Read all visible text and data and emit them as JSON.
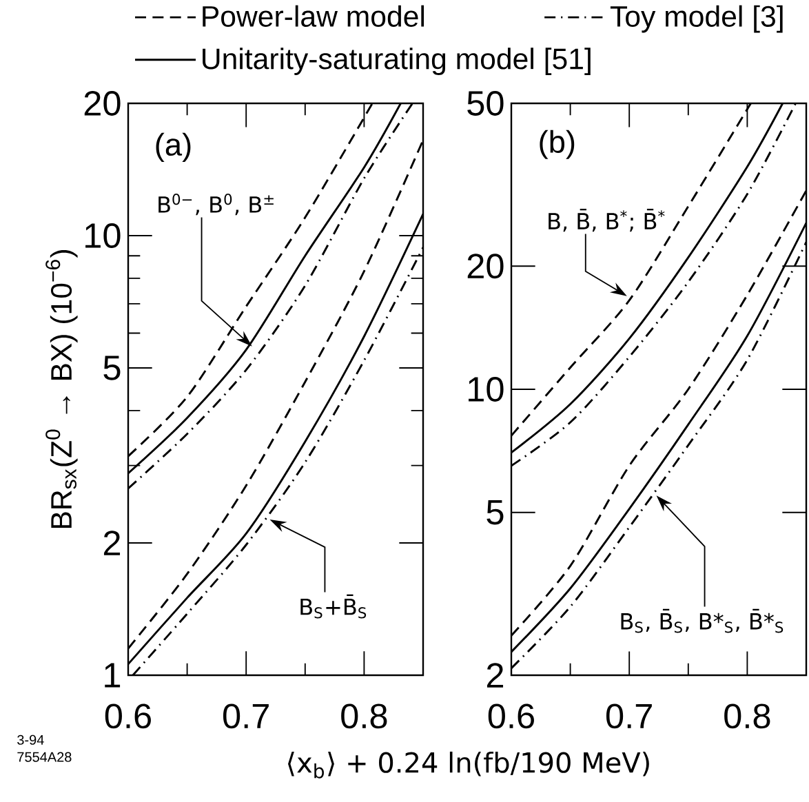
{
  "chart_data": [
    {
      "type": "line",
      "log": "y",
      "legend": "top",
      "ylabel": "BR$_{sx}$(Z$^{0}$ → BX)  (10$^{−6}$)",
      "xlabel": "⟨x$_{b}$⟩ + 0.24 ln(fb/190 MeV)",
      "xlim": [
        0.6,
        0.85
      ],
      "xticks": [
        0.6,
        0.7,
        0.8
      ],
      "ylim": [
        1,
        20
      ],
      "yticks": [
        1,
        2,
        5,
        10,
        20
      ],
      "series": [
        {
          "name": "Power-law model",
          "color": "#000000",
          "line_style": "dashed",
          "x": [
            0.6,
            0.65,
            0.7,
            0.75,
            0.807
          ],
          "values": [
            3.15,
            4.3,
            6.9,
            11,
            20
          ]
        },
        {
          "name": "Toy model [3]",
          "color": "#000000",
          "line_style": "dashdot",
          "x": [
            0.6,
            0.65,
            0.7,
            0.75,
            0.8,
            0.841
          ],
          "values": [
            2.66,
            3.54,
            4.95,
            7.7,
            13.5,
            20
          ]
        },
        {
          "name": "Unitarity-saturating model [51]",
          "color": "#000000",
          "line_style": "solid",
          "x": [
            0.6,
            0.65,
            0.7,
            0.75,
            0.8,
            0.831
          ],
          "values": [
            2.88,
            3.85,
            5.5,
            9.0,
            14.3,
            20
          ]
        },
        {
          "color": "#000000",
          "line_style": "dashed",
          "x": [
            0.6,
            0.65,
            0.7,
            0.75,
            0.8,
            0.85
          ],
          "values": [
            1.15,
            1.7,
            2.7,
            4.65,
            8.3,
            16.5
          ]
        },
        {
          "color": "#000000",
          "line_style": "dashdot",
          "x": [
            0.604,
            0.65,
            0.7,
            0.75,
            0.8,
            0.85
          ],
          "values": [
            1.0,
            1.38,
            1.98,
            3.05,
            5.2,
            9.4
          ]
        },
        {
          "color": "#000000",
          "line_style": "solid",
          "x": [
            0.6,
            0.65,
            0.7,
            0.75,
            0.8,
            0.85
          ],
          "values": [
            1.06,
            1.5,
            2.1,
            3.4,
            5.9,
            11.2
          ]
        }
      ],
      "annotations": [
        "(a)",
        {
          "text": "B$^{0−}$, B$^{0}$, B$^{±}$",
          "x": 0.705,
          "y": 5.6
        },
        {
          "text": "B$_{S}$+B̄$_{S}$",
          "x": 0.72,
          "y": 2.26
        },
        "3-94",
        "7554A28"
      ]
    },
    {
      "type": "line",
      "log": "y",
      "xlim": [
        0.6,
        0.85
      ],
      "xticks": [
        0.6,
        0.7,
        0.8
      ],
      "ylim": [
        2,
        50
      ],
      "yticks": [
        2,
        5,
        10,
        20,
        50
      ],
      "series": [
        {
          "color": "#000000",
          "line_style": "dashed",
          "x": [
            0.6,
            0.65,
            0.7,
            0.75,
            0.803
          ],
          "values": [
            7.7,
            11.3,
            16.5,
            28,
            50
          ]
        },
        {
          "color": "#000000",
          "line_style": "dashdot",
          "x": [
            0.6,
            0.65,
            0.7,
            0.75,
            0.8,
            0.841
          ],
          "values": [
            6.5,
            8.3,
            12,
            18.3,
            30,
            50
          ]
        },
        {
          "color": "#000000",
          "line_style": "solid",
          "x": [
            0.6,
            0.65,
            0.7,
            0.75,
            0.8,
            0.83
          ],
          "values": [
            7.0,
            9.2,
            13.3,
            21,
            35,
            50
          ]
        },
        {
          "color": "#000000",
          "line_style": "dashed",
          "x": [
            0.6,
            0.65,
            0.7,
            0.75,
            0.8,
            0.85
          ],
          "values": [
            2.5,
            3.7,
            6.5,
            10.0,
            17,
            30.6
          ]
        },
        {
          "color": "#000000",
          "line_style": "dashdot",
          "x": [
            0.6,
            0.65,
            0.7,
            0.75,
            0.8,
            0.85
          ],
          "values": [
            2.08,
            2.94,
            4.6,
            7.3,
            11.8,
            22.9
          ]
        },
        {
          "color": "#000000",
          "line_style": "solid",
          "x": [
            0.6,
            0.65,
            0.7,
            0.75,
            0.8,
            0.85
          ],
          "values": [
            2.28,
            3.26,
            5.1,
            8.2,
            13.5,
            25.5
          ]
        }
      ],
      "annotations": [
        "(b)",
        {
          "text": "B, B̄, B$^{*}$; B̄$^{*}$",
          "x": 0.698,
          "y": 16.9
        },
        {
          "text": "B$_{S}$, B̄$_{S}$, B*$_{S}$, B̄*$_{S}$",
          "x": 0.723,
          "y": 5.5
        }
      ]
    }
  ]
}
